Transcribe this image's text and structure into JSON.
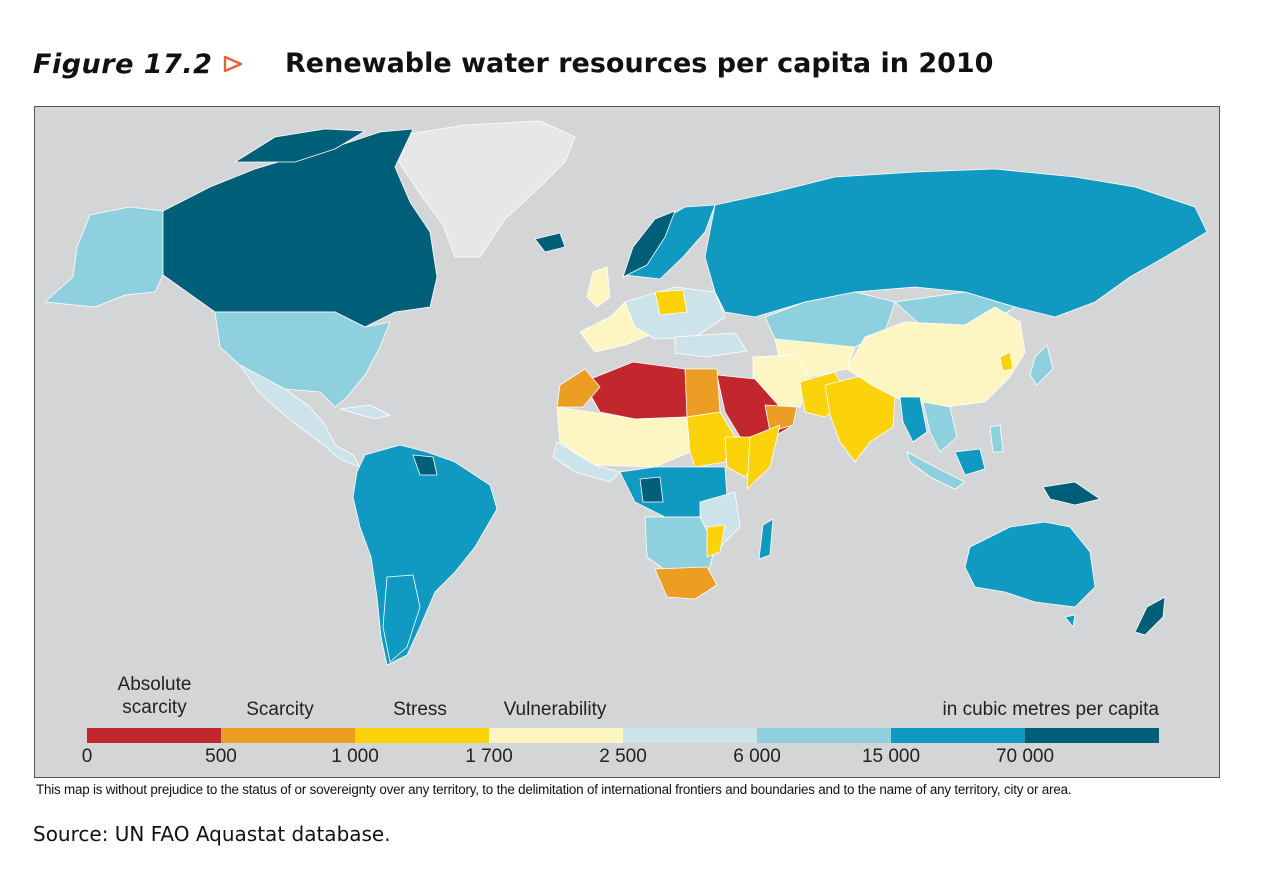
{
  "figure": {
    "number": "Figure 17.2",
    "title": "Renewable water resources per capita in 2010"
  },
  "legend": {
    "categories": [
      {
        "label": "Absolute\nscarcity",
        "color": "#c1272d"
      },
      {
        "label": "Scarcity",
        "color": "#eb9d24"
      },
      {
        "label": "Stress",
        "color": "#fcd20a"
      },
      {
        "label": "Vulnerability",
        "color": "#fdf6c3"
      }
    ],
    "unit_label": "in cubic metres per capita",
    "thresholds": [
      "0",
      "500",
      "1 000",
      "1 700",
      "2 500",
      "6 000",
      "15 000",
      "70 000"
    ],
    "scale_colors": [
      "#c1272d",
      "#eb9d24",
      "#fcd20a",
      "#fdf6c3",
      "#cde3ea",
      "#8fd0de",
      "#1099c1",
      "#005f78"
    ]
  },
  "colors": {
    "ocean": "#d4d5d7",
    "no_data": "#e6e7e9",
    "accent_arrow": "#e8623a"
  },
  "disclaimer": "This map is without prejudice to the status of or sovereignty over any territory, to the delimitation of international frontiers and boundaries and to the name of any territory, city or area.",
  "source": "Source: UN FAO Aquastat database."
}
